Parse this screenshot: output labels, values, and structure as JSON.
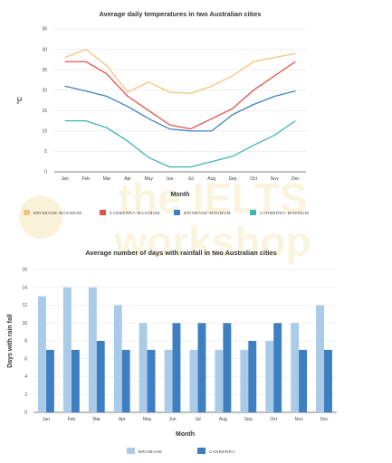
{
  "chart_data": [
    {
      "type": "line",
      "title": "Average daily temperatures in two Australian cities",
      "xlabel": "Month",
      "ylabel": "°C",
      "categories": [
        "Jan",
        "Feb",
        "Mar",
        "Apr",
        "May",
        "Jun",
        "Jul",
        "Aug",
        "Sep",
        "Oct",
        "Nov",
        "Dec"
      ],
      "ylim": [
        0,
        35
      ],
      "yticks": [
        0,
        5,
        10,
        15,
        20,
        25,
        30,
        35
      ],
      "grid": true,
      "legend_position": "bottom",
      "series": [
        {
          "name": "BRISBANE-MAXIMUM",
          "color": "#f5c27a",
          "values": [
            28,
            30,
            26,
            19.5,
            22,
            19.5,
            19.2,
            21,
            23.5,
            27,
            28,
            29
          ]
        },
        {
          "name": "CANBERRA-MAXIMUM",
          "color": "#e0504b",
          "values": [
            27,
            27,
            24,
            18.5,
            15,
            11.5,
            10.5,
            13,
            15.5,
            20,
            23.5,
            27
          ]
        },
        {
          "name": "BRISBANE-MINIMUM",
          "color": "#3e7fc4",
          "values": [
            21,
            19.8,
            18.5,
            16,
            13,
            10.5,
            10,
            10,
            14,
            16.5,
            18.5,
            19.8
          ]
        },
        {
          "name": "CANBERRA-MINIMUM",
          "color": "#3fb4b4",
          "values": [
            12.5,
            12.5,
            10.8,
            7.5,
            3.5,
            1.2,
            1.2,
            2.5,
            3.8,
            6.5,
            9,
            12.5
          ]
        }
      ]
    },
    {
      "type": "bar",
      "title": "Average number of days with rainfall in two Australian cities",
      "xlabel": "Month",
      "ylabel": "Days with rain fall",
      "categories": [
        "Jan",
        "Feb",
        "Mar",
        "Apr",
        "May",
        "Jun",
        "Jul",
        "Aug",
        "Sep",
        "Oct",
        "Nov",
        "Dec"
      ],
      "ylim": [
        0,
        16
      ],
      "yticks": [
        0,
        2,
        4,
        6,
        8,
        10,
        12,
        14,
        16
      ],
      "grid": true,
      "legend_position": "bottom",
      "series": [
        {
          "name": "BRISBANE",
          "color": "#a9cbe8",
          "values": [
            13,
            14,
            14,
            12,
            10,
            7,
            7,
            7,
            7,
            8,
            10,
            12
          ]
        },
        {
          "name": "CANBERRA",
          "color": "#3d7fc1",
          "values": [
            7,
            7,
            8,
            7,
            7,
            10,
            10,
            10,
            8,
            10,
            7,
            7
          ]
        }
      ]
    }
  ],
  "watermark": {
    "lines": [
      "the IELTS",
      "workshop"
    ],
    "color": "#f6e7b8"
  }
}
